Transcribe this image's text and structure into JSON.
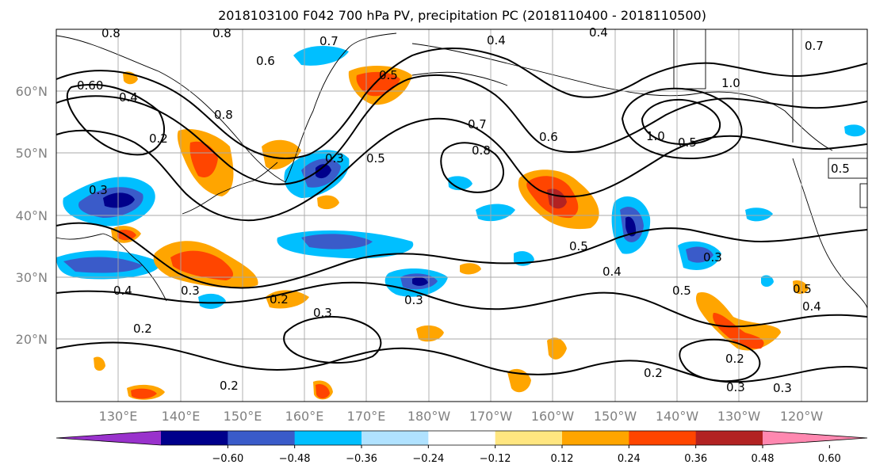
{
  "title": "2018103100 F042 700 hPa PV, precipitation PC (2018110400 - 2018110500)",
  "lat_labels": [
    "60°N",
    "50°N",
    "40°N",
    "30°N",
    "20°N"
  ],
  "lon_labels": [
    "130°E",
    "140°E",
    "150°E",
    "160°E",
    "170°E",
    "180°W",
    "170°W",
    "160°W",
    "150°W",
    "140°W",
    "130°W",
    "120°W"
  ],
  "colorbar": {
    "colors": [
      "#9932cc",
      "#00008b",
      "#3a5bc9",
      "#00bfff",
      "#b0e2ff",
      "#ffffff",
      "#ffe680",
      "#ffa500",
      "#ff4500",
      "#b22222",
      "#ff88b0"
    ],
    "ticks": [
      "−0.60",
      "−0.48",
      "−0.36",
      "−0.24",
      "−0.12",
      "0.12",
      "0.24",
      "0.36",
      "0.48",
      "0.60"
    ]
  },
  "contour_labels": [
    "0.8",
    "0.7",
    "0.4",
    "0.4",
    "0.7",
    "0.6",
    "0.60",
    "0.4",
    "0.8",
    "1.0",
    "0.8",
    "0.7",
    "0.6",
    "0.8",
    "0.5",
    "0.5",
    "1.0",
    "0.5",
    "0.5",
    "0.5",
    "0.3",
    "0.3",
    "0.4",
    "0.5",
    "0.4",
    "0.3",
    "0.2",
    "0.3",
    "0.2",
    "0.2",
    "0.2",
    "0.2",
    "0.3",
    "0.3",
    "0.3",
    "0.5",
    "0.4",
    "0.2",
    "0.3"
  ],
  "map": {
    "projection": "cylindrical",
    "lat_range": [
      "10°N",
      "70°N"
    ],
    "lon_range": [
      "120°E",
      "110°W"
    ]
  }
}
